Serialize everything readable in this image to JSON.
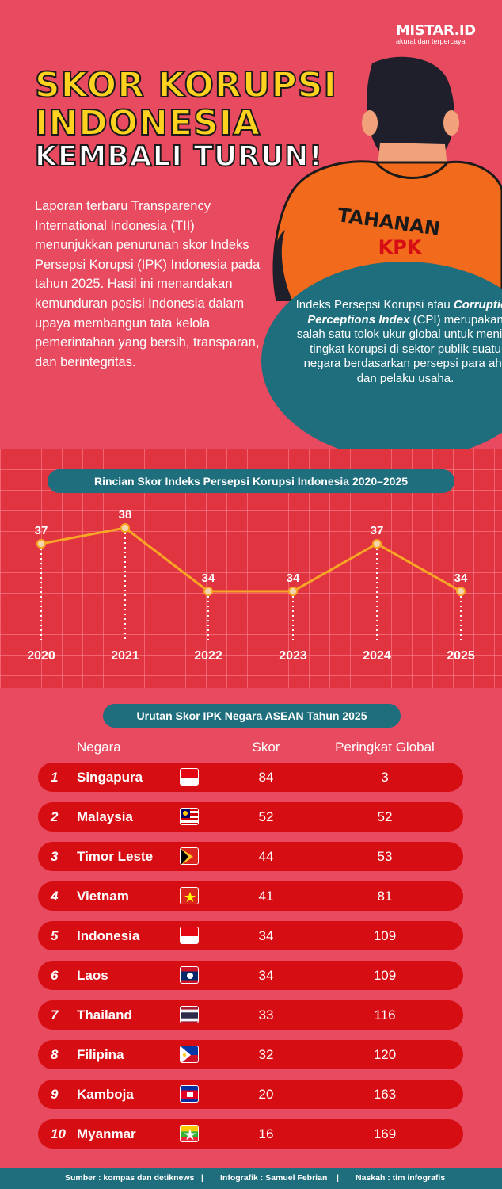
{
  "brand": {
    "name": "MISTAR.ID",
    "tagline": "akurat dan terpercaya"
  },
  "title": {
    "line1": "SKOR KORUPSI",
    "line2": "INDONESIA",
    "line3": "KEMBALI TURUN!"
  },
  "illustration": {
    "vest_text": "TAHANAN",
    "vest_subtext": "KPK"
  },
  "intro_text": "Laporan terbaru Transparency International Indonesia (TII) menunjukkan penurunan skor Indeks Persepsi Korupsi (IPK) Indonesia pada tahun 2025. Hasil ini menandakan kemunduran posisi Indonesia dalam upaya membangun tata kelola pemerintahan yang bersih, transparan, dan berintegritas.",
  "info_box": {
    "part1": "Indeks Persepsi Korupsi atau ",
    "italic": "Corruption Perceptions Index",
    "part2": " (CPI) merupakan salah satu tolok ukur global untuk menilai tingkat korupsi di sektor publik suatu negara berdasarkan persepsi para ahli dan pelaku usaha."
  },
  "colors": {
    "background": "#e84a5f",
    "grid_panel": "#e13441",
    "teal": "#1f6e7d",
    "line": "#f7a723",
    "row": "#d60e14",
    "title_yellow": "#ffd21f"
  },
  "chart_data": [
    {
      "type": "line",
      "title": "Rincian Skor Indeks Persepsi Korupsi Indonesia 2020–2025",
      "categories": [
        "2020",
        "2021",
        "2022",
        "2023",
        "2024",
        "2025"
      ],
      "series": [
        {
          "values": [
            37,
            38,
            34,
            34,
            37,
            34
          ]
        }
      ],
      "grid": true
    },
    {
      "type": "table",
      "title": "Urutan Skor IPK Negara ASEAN Tahun 2025",
      "columns": [
        "Negara",
        "Skor",
        "Peringkat Global"
      ],
      "rows": [
        {
          "rank": "1",
          "country": "Singapura",
          "flag": "singapore-flag-icon",
          "score": "84",
          "global": "3"
        },
        {
          "rank": "2",
          "country": "Malaysia",
          "flag": "malaysia-flag-icon",
          "score": "52",
          "global": "52"
        },
        {
          "rank": "3",
          "country": "Timor Leste",
          "flag": "timor-leste-flag-icon",
          "score": "44",
          "global": "53"
        },
        {
          "rank": "4",
          "country": "Vietnam",
          "flag": "vietnam-flag-icon",
          "score": "41",
          "global": "81"
        },
        {
          "rank": "5",
          "country": "Indonesia",
          "flag": "indonesia-flag-icon",
          "score": "34",
          "global": "109"
        },
        {
          "rank": "6",
          "country": "Laos",
          "flag": "laos-flag-icon",
          "score": "34",
          "global": "109"
        },
        {
          "rank": "7",
          "country": "Thailand",
          "flag": "thailand-flag-icon",
          "score": "33",
          "global": "116"
        },
        {
          "rank": "8",
          "country": "Filipina",
          "flag": "philippines-flag-icon",
          "score": "32",
          "global": "120"
        },
        {
          "rank": "9",
          "country": "Kamboja",
          "flag": "cambodia-flag-icon",
          "score": "20",
          "global": "163"
        },
        {
          "rank": "10",
          "country": "Myanmar",
          "flag": "myanmar-flag-icon",
          "score": "16",
          "global": "169"
        }
      ]
    }
  ],
  "footer": {
    "source": "Sumber : kompas dan detiknews",
    "infographic": "Infografik : Samuel Febrian",
    "script": "Naskah : tim infografis",
    "separator": "|"
  }
}
